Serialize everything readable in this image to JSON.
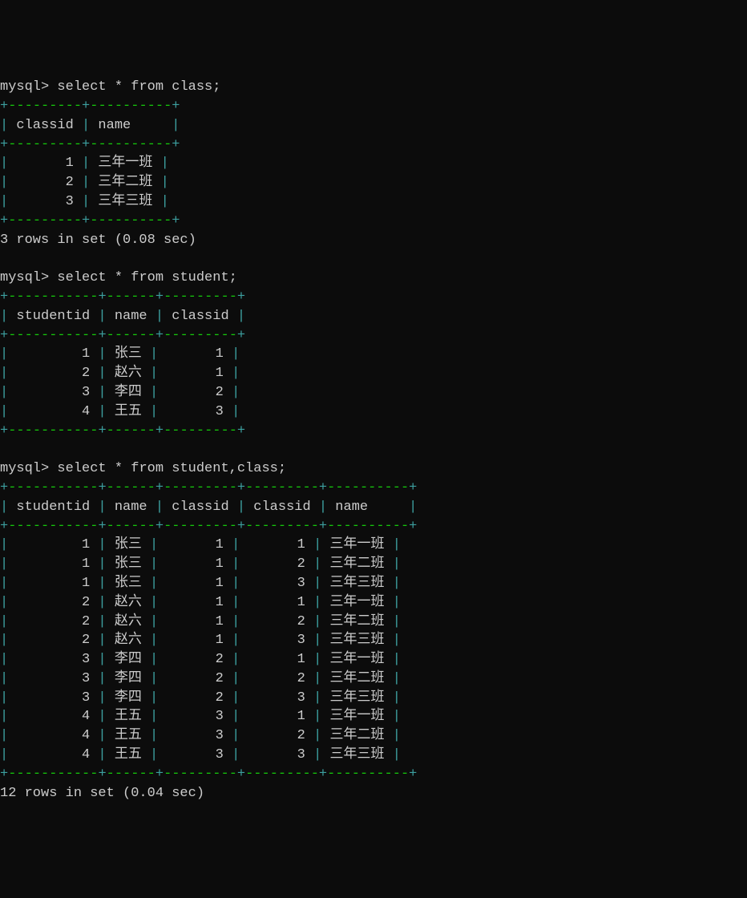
{
  "colors": {
    "bg": "#0c0c0c",
    "text": "#cccccc",
    "cyan": "#3da0a0",
    "green": "#16c60c"
  },
  "font": {
    "family": "Consolas, Courier New, monospace",
    "size": 17
  },
  "queries": [
    {
      "prompt": "mysql> ",
      "sql": "select * from class;",
      "border_top": "+---------+----------+",
      "header_row": "| classid | name     |",
      "border_mid": "+---------+----------+",
      "rows": [
        "|       1 | 三年一班 |",
        "|       2 | 三年二班 |",
        "|       3 | 三年三班 |"
      ],
      "border_bot": "+---------+----------+",
      "status": "3 rows in set (0.08 sec)"
    },
    {
      "prompt": "mysql> ",
      "sql": "select * from student;",
      "border_top": "+-----------+------+---------+",
      "header_row": "| studentid | name | classid |",
      "border_mid": "+-----------+------+---------+",
      "rows": [
        "|         1 | 张三 |       1 |",
        "|         2 | 赵六 |       1 |",
        "|         3 | 李四 |       2 |",
        "|         4 | 王五 |       3 |"
      ],
      "border_bot": "+-----------+------+---------+",
      "status": ""
    },
    {
      "prompt": "mysql> ",
      "sql": "select * from student,class;",
      "border_top": "+-----------+------+---------+---------+----------+",
      "header_row": "| studentid | name | classid | classid | name     |",
      "border_mid": "+-----------+------+---------+---------+----------+",
      "rows": [
        "|         1 | 张三 |       1 |       1 | 三年一班 |",
        "|         1 | 张三 |       1 |       2 | 三年二班 |",
        "|         1 | 张三 |       1 |       3 | 三年三班 |",
        "|         2 | 赵六 |       1 |       1 | 三年一班 |",
        "|         2 | 赵六 |       1 |       2 | 三年二班 |",
        "|         2 | 赵六 |       1 |       3 | 三年三班 |",
        "|         3 | 李四 |       2 |       1 | 三年一班 |",
        "|         3 | 李四 |       2 |       2 | 三年二班 |",
        "|         3 | 李四 |       2 |       3 | 三年三班 |",
        "|         4 | 王五 |       3 |       1 | 三年一班 |",
        "|         4 | 王五 |       3 |       2 | 三年二班 |",
        "|         4 | 王五 |       3 |       3 | 三年三班 |"
      ],
      "border_bot": "+-----------+------+---------+---------+----------+",
      "status": "12 rows in set (0.04 sec)"
    }
  ]
}
